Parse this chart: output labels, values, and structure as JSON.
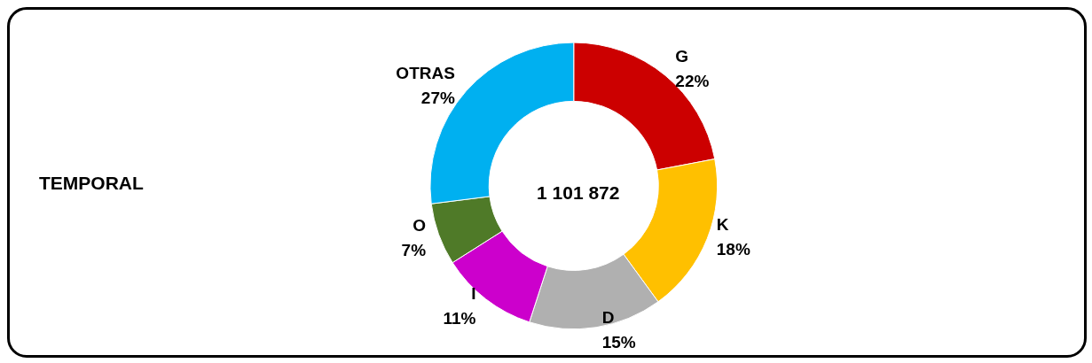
{
  "chart_data": {
    "type": "donut",
    "title": "TEMPORAL",
    "annotations": [
      "1 101 872"
    ],
    "categories": [
      "G",
      "K",
      "D",
      "I",
      "O",
      "OTRAS"
    ],
    "values": [
      22,
      18,
      15,
      11,
      7,
      27
    ],
    "colors": [
      "#cc0000",
      "#ffc000",
      "#b0b0b0",
      "#cc00cc",
      "#4f7a28",
      "#00b0f0"
    ],
    "value_labels": [
      "22%",
      "18%",
      "15%",
      "11%",
      "7%",
      "27%"
    ],
    "legend": false
  }
}
